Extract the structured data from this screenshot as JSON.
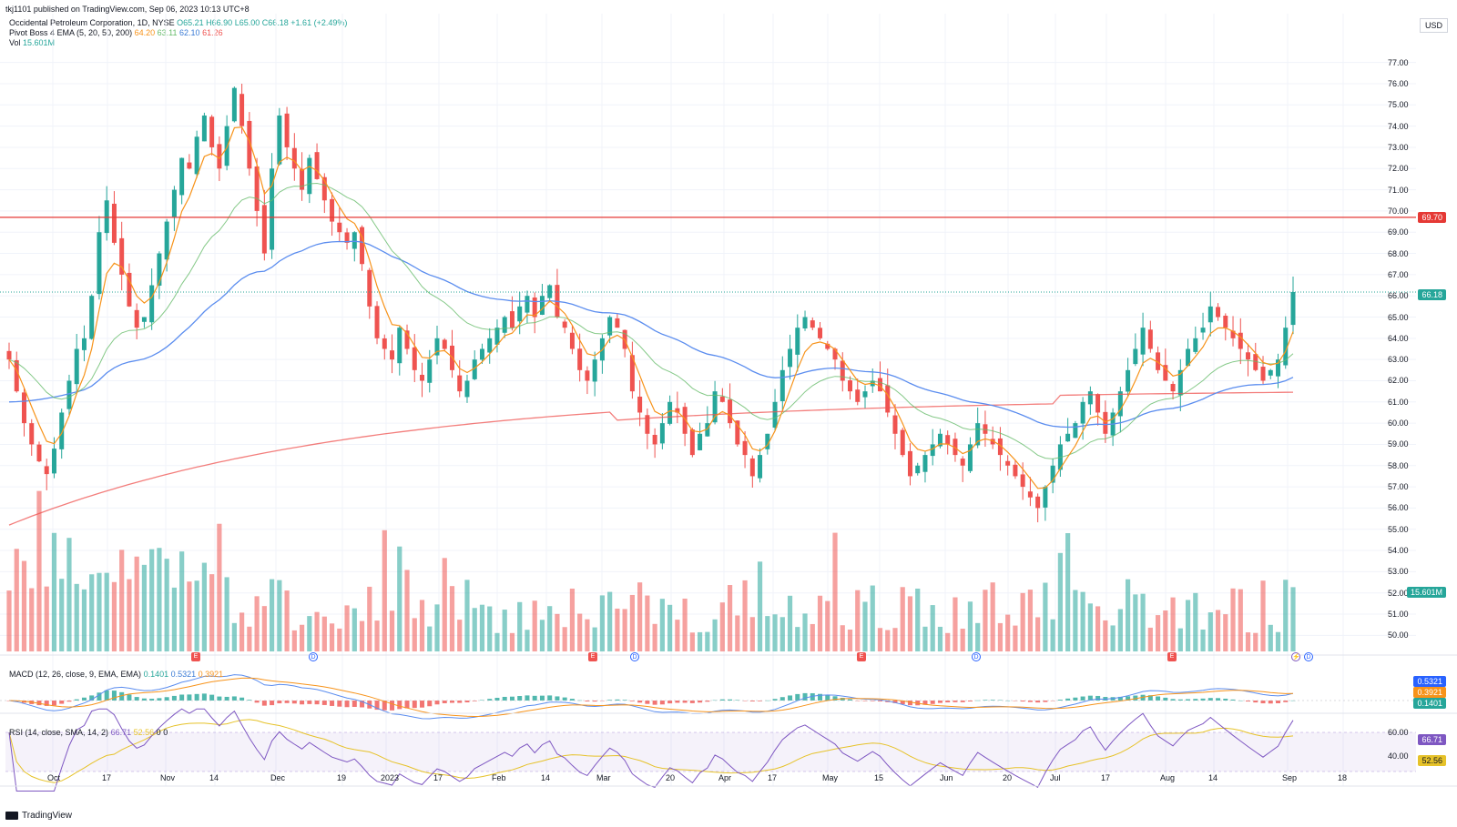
{
  "publish_line": "tkj1101 published on TradingView.com, Sep 06, 2023 10:13 UTC+8",
  "symbol": {
    "name": "Occidental Petroleum Corporation, 1D, NYSE",
    "open": "O65.21",
    "high": "H66.90",
    "low": "L65.00",
    "close": "C66.18",
    "change": "+1.61 (+2.49%)"
  },
  "ema": {
    "label": "Pivot Boss 4 EMA (5, 20, 50, 200)",
    "v5": "64.20",
    "v20": "63.11",
    "v50": "62.10",
    "v200": "61.26"
  },
  "volume": {
    "label": "Vol",
    "value": "15.601M"
  },
  "currency": "USD",
  "price_labels": {
    "resistance": "69.70",
    "last": "66.18",
    "volume": "15.601M"
  },
  "macd": {
    "label": "MACD (12, 26, close, 9, EMA, EMA)",
    "hist": "0.1401",
    "macd": "0.5321",
    "signal": "0.3921"
  },
  "rsi": {
    "label": "RSI (14, close, SMA, 14, 2)",
    "rsi": "66.71",
    "sma": "52.56",
    "extra": "0",
    "extra2": "0"
  },
  "colors": {
    "up": "#26a69a",
    "down": "#ef5350",
    "ema5": "#f7931a",
    "ema20": "#66bb6a",
    "ema50": "#5b8def",
    "ema200": "#ef5350",
    "resistance": "#e53935",
    "rsi": "#7e57c2"
  },
  "price_axis": [
    "77.00",
    "76.00",
    "75.00",
    "74.00",
    "73.00",
    "72.00",
    "71.00",
    "70.00",
    "69.00",
    "68.00",
    "67.00",
    "66.00",
    "65.00",
    "64.00",
    "63.00",
    "62.00",
    "61.00",
    "60.00",
    "59.00",
    "58.00",
    "57.00",
    "56.00",
    "55.00",
    "54.00",
    "53.00",
    "52.00",
    "51.00",
    "50.00"
  ],
  "rsi_axis": [
    "60.00",
    "40.00"
  ],
  "time_axis": [
    "Oct",
    "17",
    "Nov",
    "14",
    "Dec",
    "19",
    "2023",
    "17",
    "Feb",
    "14",
    "Mar",
    "20",
    "Apr",
    "17",
    "May",
    "15",
    "Jun",
    "20",
    "Jul",
    "17",
    "Aug",
    "14",
    "Sep",
    "18"
  ],
  "footer": "TradingView",
  "chart_data": {
    "type": "candlestick",
    "resistance": 69.7,
    "price_range": [
      49.5,
      77.5
    ],
    "closes": [
      63.0,
      61.5,
      60.0,
      59.0,
      58.2,
      57.6,
      58.8,
      60.5,
      62.0,
      63.5,
      64.0,
      66.0,
      69.0,
      70.5,
      68.5,
      67.0,
      65.5,
      64.5,
      65.0,
      66.5,
      68.0,
      69.5,
      71.0,
      72.5,
      72.0,
      73.5,
      74.5,
      73.0,
      72.0,
      74.0,
      75.8,
      74.0,
      72.0,
      70.0,
      68.0,
      72.0,
      74.5,
      73.0,
      72.0,
      71.0,
      72.5,
      71.5,
      70.5,
      69.5,
      69.0,
      68.5,
      69.0,
      67.5,
      65.5,
      64.0,
      63.5,
      63.0,
      64.5,
      63.5,
      62.5,
      62.0,
      63.0,
      64.0,
      63.5,
      62.5,
      61.5,
      62.0,
      63.0,
      63.5,
      64.0,
      64.5,
      65.0,
      64.5,
      65.5,
      66.0,
      65.0,
      66.0,
      66.5,
      65.0,
      64.5,
      63.5,
      62.5,
      62.0,
      63.0,
      64.0,
      65.0,
      64.5,
      63.5,
      61.5,
      60.5,
      59.5,
      59.0,
      60.0,
      61.0,
      60.5,
      59.5,
      58.5,
      59.5,
      60.0,
      61.5,
      61.0,
      60.0,
      59.0,
      58.5,
      57.5,
      58.5,
      59.5,
      61.0,
      62.5,
      63.5,
      64.5,
      65.0,
      64.5,
      64.0,
      63.5,
      63.0,
      62.0,
      61.5,
      61.0,
      61.5,
      62.0,
      61.5,
      60.5,
      59.5,
      58.5,
      57.5,
      58.0,
      58.5,
      59.0,
      59.5,
      59.0,
      58.5,
      58.0,
      59.0,
      60.0,
      59.5,
      59.0,
      58.5,
      58.0,
      57.5,
      57.0,
      56.5,
      56.0,
      57.0,
      58.0,
      59.0,
      59.5,
      60.0,
      61.0,
      61.5,
      60.5,
      59.5,
      60.5,
      61.5,
      62.5,
      63.5,
      64.5,
      63.5,
      62.5,
      62.0,
      61.5,
      62.5,
      63.5,
      64.0,
      64.5,
      65.5,
      65.0,
      64.5,
      64.0,
      63.5,
      63.0,
      62.5,
      62.0,
      62.5,
      63.0,
      64.5,
      66.18
    ]
  }
}
